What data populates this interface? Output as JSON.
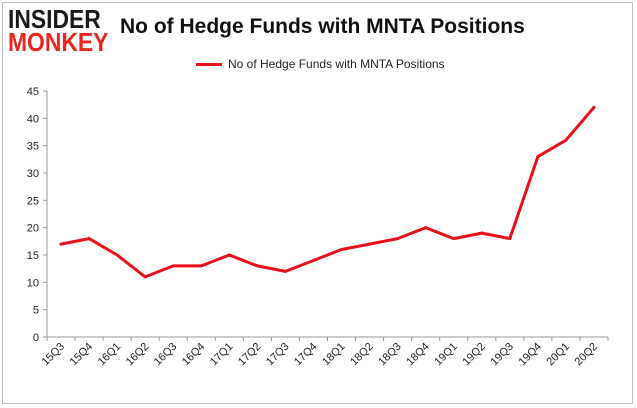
{
  "brand": {
    "line1": "INSIDER",
    "line2": "MONKEY"
  },
  "colors": {
    "series": "#e8101b",
    "brand_red": "#e8281e",
    "axis": "#999999"
  },
  "chart_data": {
    "type": "line",
    "title": "No of Hedge Funds with MNTA Positions",
    "legend_position": "top",
    "grid": false,
    "ylim": [
      0,
      45
    ],
    "yticks": [
      0,
      5,
      10,
      15,
      20,
      25,
      30,
      35,
      40,
      45
    ],
    "categories": [
      "15Q3",
      "15Q4",
      "16Q1",
      "16Q2",
      "16Q3",
      "16Q4",
      "17Q1",
      "17Q2",
      "17Q3",
      "17Q4",
      "18Q1",
      "18Q2",
      "18Q3",
      "18Q4",
      "19Q1",
      "19Q2",
      "19Q3",
      "19Q4",
      "20Q1",
      "20Q2"
    ],
    "series": [
      {
        "name": "No of Hedge Funds with MNTA Positions",
        "values": [
          17,
          18,
          15,
          11,
          13,
          13,
          15,
          13,
          12,
          14,
          16,
          17,
          18,
          20,
          18,
          19,
          18,
          33,
          36,
          42
        ]
      }
    ]
  }
}
